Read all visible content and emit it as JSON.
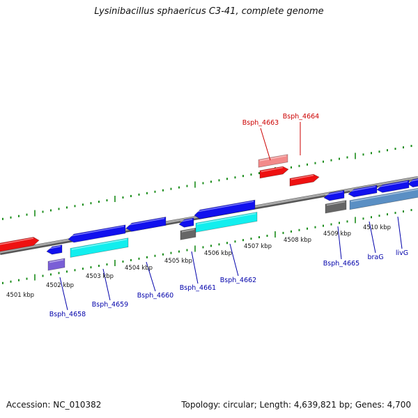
{
  "title": "Lysinibacillus sphaericus C3-41, complete genome",
  "footer": {
    "accession_label": "Accession:",
    "accession": "NC_010382",
    "topology_label": "Topology:",
    "topology": "circular",
    "length_label": "Length:",
    "length": "4,639,821 bp",
    "genes_label": "Genes:",
    "genes": "4,700"
  },
  "colors": {
    "backbone": "#888888",
    "tick": "#1a8c1a",
    "forward_cds": "#ee1111",
    "forward_cds_light": "#f28a8a",
    "reverse_cds": "#1111ee",
    "cyan_feature": "#12eeee",
    "purple_feature": "#7a5fd6",
    "gray_feature": "#666666",
    "steelblue_feature": "#5a8fc4",
    "forward_label": "#cc0000",
    "reverse_label": "#0000aa"
  },
  "scale_labels": [
    "4501 kbp",
    "4502 kbp",
    "4503 kbp",
    "4504 kbp",
    "4505 kbp",
    "4506 kbp",
    "4507 kbp",
    "4508 kbp",
    "4509 kbp",
    "4510 kbp"
  ],
  "gene_labels": {
    "forward": [
      "Bsph_4663",
      "Bsph_4664"
    ],
    "reverse": [
      "Bsph_4658",
      "Bsph_4659",
      "Bsph_4660",
      "Bsph_4661",
      "Bsph_4662",
      "Bsph_4665",
      "braG",
      "livG"
    ]
  }
}
